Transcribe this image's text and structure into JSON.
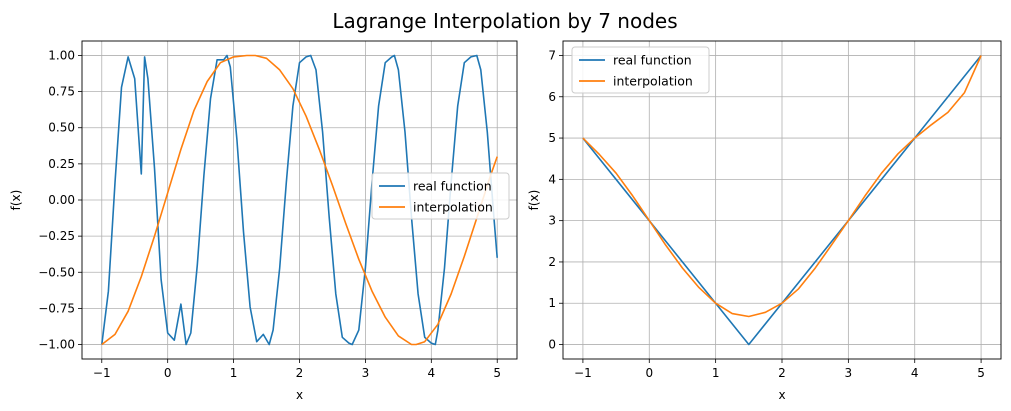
{
  "figure": {
    "title": "Lagrange Interpolation by 7 nodes"
  },
  "chart_data": [
    {
      "type": "line",
      "xlabel": "x",
      "ylabel": "f(x)",
      "xlim": [
        -1.3,
        5.3
      ],
      "ylim": [
        -1.1,
        1.1
      ],
      "xticks": [
        -1,
        0,
        1,
        2,
        3,
        4,
        5
      ],
      "xtick_labels": [
        "−1",
        "0",
        "1",
        "2",
        "3",
        "4",
        "5"
      ],
      "yticks": [
        -1.0,
        -0.75,
        -0.5,
        -0.25,
        0.0,
        0.25,
        0.5,
        0.75,
        1.0
      ],
      "ytick_labels": [
        "−1.00",
        "−0.75",
        "−0.50",
        "−0.25",
        "0.00",
        "0.25",
        "0.50",
        "0.75",
        "1.00"
      ],
      "grid": true,
      "legend_position": "center-right",
      "series": [
        {
          "name": "real function",
          "color": "#1f77b4",
          "x": [
            -1.0,
            -0.9,
            -0.8,
            -0.7,
            -0.6,
            -0.5,
            -0.4,
            -0.35,
            -0.3,
            -0.2,
            -0.1,
            0.0,
            0.1,
            0.2,
            0.28,
            0.35,
            0.45,
            0.55,
            0.65,
            0.75,
            0.85,
            0.9,
            0.95,
            1.05,
            1.15,
            1.25,
            1.35,
            1.45,
            1.54,
            1.6,
            1.7,
            1.8,
            1.9,
            2.0,
            2.1,
            2.17,
            2.25,
            2.35,
            2.45,
            2.55,
            2.65,
            2.75,
            2.8,
            2.9,
            3.0,
            3.1,
            3.2,
            3.3,
            3.4,
            3.44,
            3.5,
            3.6,
            3.7,
            3.8,
            3.9,
            4.0,
            4.06,
            4.1,
            4.2,
            4.3,
            4.4,
            4.5,
            4.6,
            4.69,
            4.75,
            4.85,
            4.95,
            5.0
          ],
          "y": [
            -1.0,
            -0.63,
            0.12,
            0.78,
            0.99,
            0.84,
            0.18,
            0.99,
            0.84,
            0.22,
            -0.55,
            -0.92,
            -0.97,
            -0.72,
            -1.0,
            -0.92,
            -0.45,
            0.17,
            0.7,
            0.97,
            0.97,
            1.0,
            0.92,
            0.42,
            -0.22,
            -0.74,
            -0.98,
            -0.93,
            -1.0,
            -0.9,
            -0.47,
            0.12,
            0.65,
            0.95,
            0.99,
            1.0,
            0.9,
            0.47,
            -0.12,
            -0.65,
            -0.95,
            -0.99,
            -1.0,
            -0.9,
            -0.47,
            0.12,
            0.65,
            0.95,
            0.99,
            1.0,
            0.9,
            0.47,
            -0.12,
            -0.65,
            -0.95,
            -0.99,
            -1.0,
            -0.9,
            -0.47,
            0.12,
            0.65,
            0.95,
            0.99,
            1.0,
            0.9,
            0.47,
            -0.12,
            -0.4
          ]
        },
        {
          "name": "interpolation",
          "color": "#ff7f0e",
          "x": [
            -1.0,
            -0.8,
            -0.6,
            -0.4,
            -0.2,
            0.0,
            0.2,
            0.4,
            0.6,
            0.8,
            1.0,
            1.2,
            1.33,
            1.5,
            1.7,
            1.9,
            2.1,
            2.3,
            2.5,
            2.7,
            2.9,
            3.1,
            3.3,
            3.5,
            3.7,
            3.77,
            3.9,
            4.1,
            4.3,
            4.5,
            4.7,
            4.9,
            5.0
          ],
          "y": [
            -1.0,
            -0.93,
            -0.77,
            -0.53,
            -0.25,
            0.05,
            0.35,
            0.62,
            0.82,
            0.95,
            0.99,
            1.0,
            1.0,
            0.98,
            0.9,
            0.77,
            0.58,
            0.35,
            0.1,
            -0.16,
            -0.41,
            -0.63,
            -0.81,
            -0.94,
            -1.0,
            -1.0,
            -0.98,
            -0.86,
            -0.65,
            -0.39,
            -0.11,
            0.17,
            0.3
          ]
        }
      ]
    },
    {
      "type": "line",
      "xlabel": "x",
      "ylabel": "f(x)",
      "xlim": [
        -1.3,
        5.3
      ],
      "ylim": [
        -0.35,
        7.35
      ],
      "xticks": [
        -1,
        0,
        1,
        2,
        3,
        4,
        5
      ],
      "xtick_labels": [
        "−1",
        "0",
        "1",
        "2",
        "3",
        "4",
        "5"
      ],
      "yticks": [
        0,
        1,
        2,
        3,
        4,
        5,
        6,
        7
      ],
      "ytick_labels": [
        "0",
        "1",
        "2",
        "3",
        "4",
        "5",
        "6",
        "7"
      ],
      "grid": true,
      "legend_position": "upper-left",
      "series": [
        {
          "name": "real function",
          "color": "#1f77b4",
          "x": [
            -1.0,
            1.5,
            5.0
          ],
          "y": [
            5.0,
            0.0,
            7.0
          ]
        },
        {
          "name": "interpolation",
          "color": "#ff7f0e",
          "x": [
            -1.0,
            -0.75,
            -0.5,
            -0.25,
            0.0,
            0.25,
            0.5,
            0.75,
            1.0,
            1.25,
            1.5,
            1.75,
            2.0,
            2.25,
            2.5,
            2.75,
            3.0,
            3.25,
            3.5,
            3.75,
            4.0,
            4.25,
            4.5,
            4.75,
            5.0
          ],
          "y": [
            5.0,
            4.6,
            4.15,
            3.6,
            3.0,
            2.4,
            1.85,
            1.38,
            1.0,
            0.75,
            0.68,
            0.78,
            1.0,
            1.35,
            1.85,
            2.42,
            3.0,
            3.6,
            4.15,
            4.62,
            5.0,
            5.32,
            5.62,
            6.1,
            7.0
          ]
        }
      ]
    }
  ]
}
